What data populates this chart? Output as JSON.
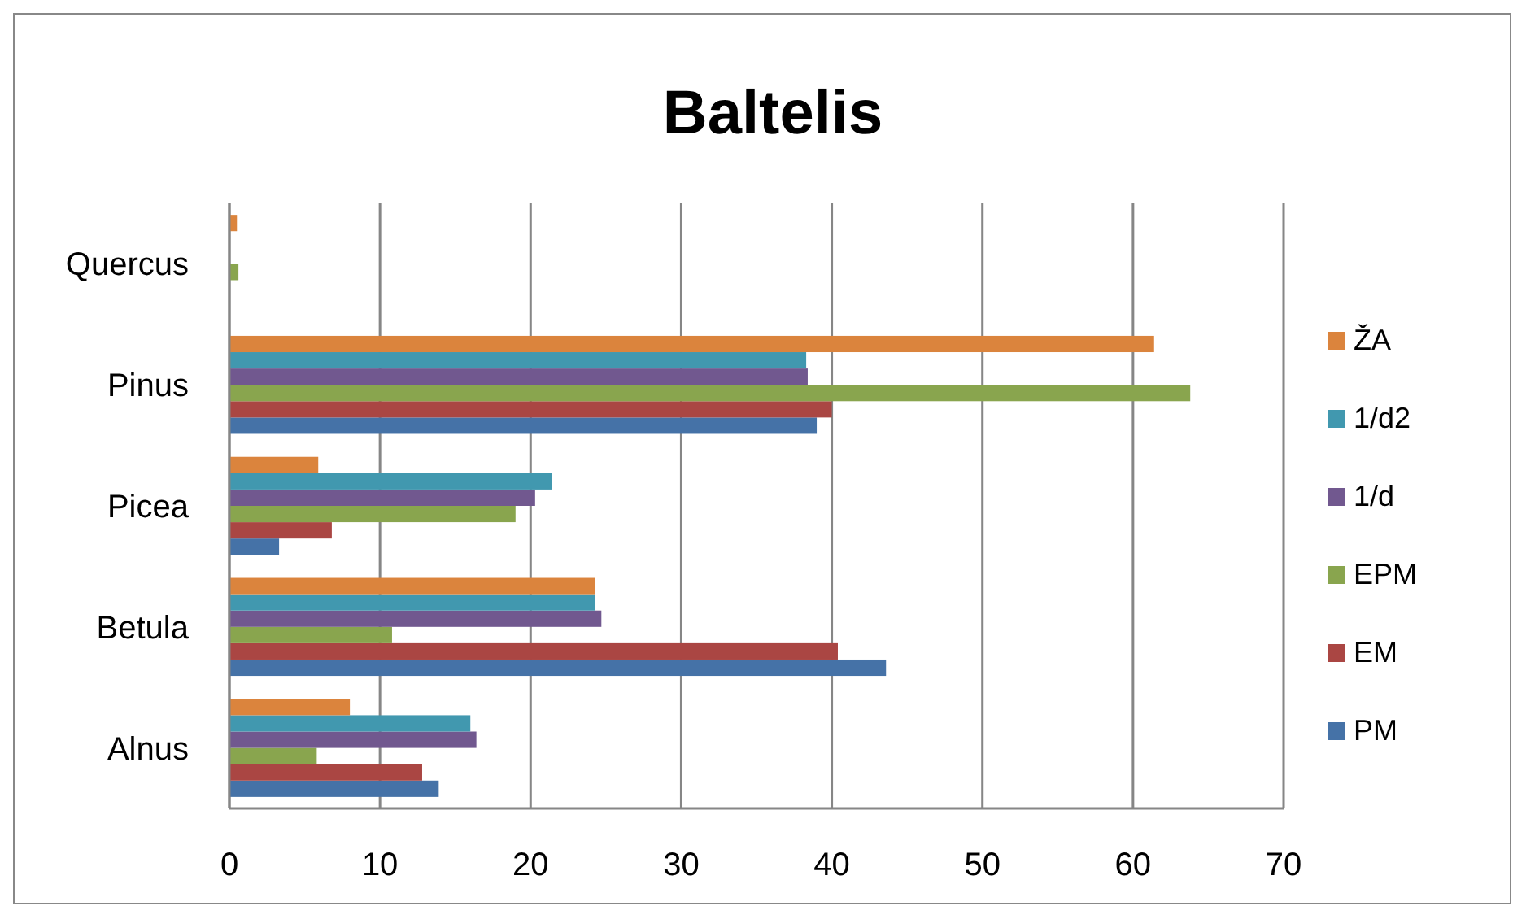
{
  "chart_data": {
    "type": "bar",
    "orientation": "horizontal",
    "title": "Baltelis",
    "categories": [
      "Quercus",
      "Pinus",
      "Picea",
      "Betula",
      "Alnus"
    ],
    "series": [
      {
        "name": "PM",
        "color": "#4572a7",
        "values": [
          0,
          39.0,
          3.3,
          43.6,
          13.9
        ]
      },
      {
        "name": "EM",
        "color": "#aa4643",
        "values": [
          0,
          40.0,
          6.8,
          40.4,
          12.8
        ]
      },
      {
        "name": "EPM",
        "color": "#89a54e",
        "values": [
          0.6,
          63.8,
          19.0,
          10.8,
          5.8
        ]
      },
      {
        "name": "1/d",
        "color": "#71588f",
        "values": [
          0,
          38.4,
          20.3,
          24.7,
          16.4
        ]
      },
      {
        "name": "1/d2",
        "color": "#4198af",
        "values": [
          0,
          38.3,
          21.4,
          24.3,
          16.0
        ]
      },
      {
        "name": "ŽA",
        "color": "#db843d",
        "values": [
          0.5,
          61.4,
          5.9,
          24.3,
          8.0
        ]
      }
    ],
    "xlim": [
      0,
      70
    ],
    "xticks": [
      0,
      10,
      20,
      30,
      40,
      50,
      60,
      70
    ],
    "grid": "x",
    "legend": "right"
  }
}
